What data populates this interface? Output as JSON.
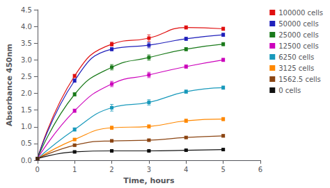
{
  "chart_data": {
    "type": "line",
    "xlabel": "Time, hours",
    "ylabel": "Absorbance 450nm",
    "xlim": [
      0,
      6
    ],
    "xticks": [
      0,
      1,
      2,
      3,
      4,
      5,
      6
    ],
    "ylim": [
      0,
      4.5
    ],
    "yticks": [
      {
        "value": 0,
        "label": "0.0"
      },
      0.5,
      {
        "value": 1.0,
        "label": "1.0"
      },
      1.5,
      {
        "value": 2.0,
        "label": "2.0"
      },
      2.5,
      {
        "value": 3.0,
        "label": "3.0"
      },
      3.5,
      {
        "value": 4.0,
        "label": "4.0"
      },
      4.5
    ],
    "grid": false,
    "legend": "right",
    "marker": "square",
    "line_style": "solid",
    "series": [
      {
        "name": "100000 cells",
        "color": "#e01010",
        "x": [
          0,
          1,
          2,
          3,
          4,
          5
        ],
        "values": [
          0.05,
          2.52,
          3.47,
          3.65,
          3.97,
          3.93
        ],
        "errors": [
          0.02,
          0.05,
          0.06,
          0.1,
          0.05,
          0.05
        ]
      },
      {
        "name": "50000 cells",
        "color": "#2020bb",
        "x": [
          0,
          1,
          2,
          3,
          4,
          5
        ],
        "values": [
          0.05,
          2.38,
          3.32,
          3.44,
          3.63,
          3.75
        ],
        "errors": [
          0.02,
          0.05,
          0.05,
          0.08,
          0.05,
          0.05
        ]
      },
      {
        "name": "25000 cells",
        "color": "#1a7a1a",
        "x": [
          0,
          1,
          2,
          3,
          4,
          5
        ],
        "values": [
          0.05,
          1.97,
          2.78,
          3.07,
          3.32,
          3.47
        ],
        "errors": [
          0.02,
          0.05,
          0.08,
          0.08,
          0.05,
          0.05
        ]
      },
      {
        "name": "12500 cells",
        "color": "#cc00bb",
        "x": [
          0,
          1,
          2,
          3,
          4,
          5
        ],
        "values": [
          0.05,
          1.48,
          2.28,
          2.55,
          2.8,
          3.0
        ],
        "errors": [
          0.02,
          0.05,
          0.08,
          0.08,
          0.05,
          0.05
        ]
      },
      {
        "name": "6250 cells",
        "color": "#1899bb",
        "x": [
          0,
          1,
          2,
          3,
          4,
          5
        ],
        "values": [
          0.05,
          0.92,
          1.57,
          1.73,
          2.05,
          2.17
        ],
        "errors": [
          0.02,
          0.05,
          0.1,
          0.08,
          0.05,
          0.05
        ]
      },
      {
        "name": "3125 cells",
        "color": "#ff8800",
        "x": [
          0,
          1,
          2,
          3,
          4,
          5
        ],
        "values": [
          0.05,
          0.62,
          0.97,
          1.01,
          1.18,
          1.23
        ],
        "errors": [
          0.02,
          0.03,
          0.05,
          0.05,
          0.05,
          0.05
        ]
      },
      {
        "name": "1562.5 cells",
        "color": "#8b4513",
        "x": [
          0,
          1,
          2,
          3,
          4,
          5
        ],
        "values": [
          0.05,
          0.45,
          0.58,
          0.6,
          0.68,
          0.73
        ],
        "errors": [
          0.02,
          0.03,
          0.03,
          0.03,
          0.03,
          0.04
        ]
      },
      {
        "name": "0 cells",
        "color": "#111111",
        "x": [
          0,
          1,
          2,
          3,
          4,
          5
        ],
        "values": [
          0.05,
          0.25,
          0.28,
          0.28,
          0.3,
          0.32
        ],
        "errors": [
          0.01,
          0.02,
          0.02,
          0.02,
          0.02,
          0.02
        ]
      }
    ]
  }
}
